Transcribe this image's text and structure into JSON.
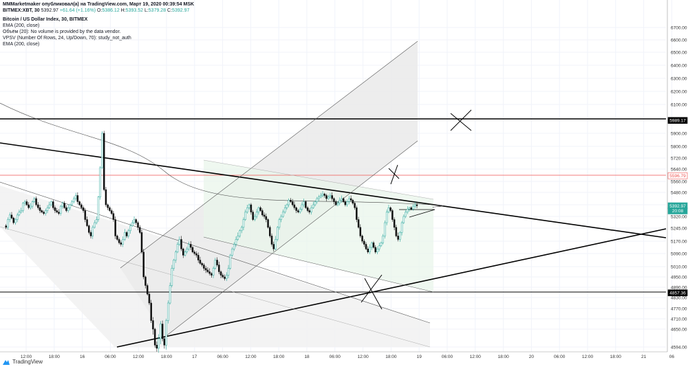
{
  "header": {
    "publisher": "MMMarketmaker опубликовал(а) на TradingView.com, Март 19, 2020 00:39:54 MSK",
    "symbol": "BITMEX:XBT, 30",
    "last": "5392.97",
    "change": "+61.64 (+1.16%)",
    "o_label": "O:",
    "o": "5386.12",
    "h_label": "H:",
    "h": "5393.52",
    "l_label": "L:",
    "l": "5379.28",
    "c_label": "C:",
    "c": "5392.97",
    "title": "Bitcoin / US Dollar Index, 30, BITMEX",
    "studies": [
      "EMA (200, close)",
      "Объём (20): No volume is provided by the data vendor.",
      "VPSV (Number Of Rows, 24, Up/Down, 70): study_not_auth",
      "EMA (200, close)"
    ]
  },
  "footer": {
    "brand": "TradingView"
  },
  "colors": {
    "up": "#26a69a",
    "down": "#111111",
    "accent_red": "#ef5350",
    "grid": "#f0f3fa"
  },
  "chart_data": {
    "type": "candlestick",
    "y_axis": {
      "ticks": [
        "6700.00",
        "6600.00",
        "6500.00",
        "6400.00",
        "6300.00",
        "6200.00",
        "6100.00",
        "6000.00",
        "5900.00",
        "5800.00",
        "5720.00",
        "5640.00",
        "5560.00",
        "5480.00",
        "5400.00",
        "5320.00",
        "5245.00",
        "5170.00",
        "5090.00",
        "5010.00",
        "4950.00",
        "4890.00",
        "4830.00",
        "4770.00",
        "4710.00",
        "4650.00",
        "4594.00"
      ],
      "tick_values": [
        6700,
        6600,
        6500,
        6400,
        6300,
        6200,
        6100,
        6000,
        5900,
        5800,
        5720,
        5640,
        5560,
        5480,
        5400,
        5320,
        5245,
        5170,
        5090,
        5010,
        4950,
        4890,
        4830,
        4770,
        4710,
        4650,
        4594
      ]
    },
    "x_axis": {
      "ticks": [
        "12:00",
        "18:00",
        "16",
        "06:00",
        "12:00",
        "18:00",
        "17",
        "06:00",
        "12:00",
        "18:00",
        "18",
        "06:00",
        "12:00",
        "18:00",
        "19",
        "06:00",
        "12:00",
        "18:00",
        "20",
        "06:00",
        "12:00",
        "18:00",
        "21",
        "06"
      ]
    },
    "price_tags": [
      {
        "label": "5989.17",
        "value": 5989.17,
        "style": "black"
      },
      {
        "label": "5596.79",
        "value": 5596.79,
        "style": "red"
      },
      {
        "label": "5392.97",
        "value": 5392.97,
        "style": "green"
      },
      {
        "label": "20:08",
        "value": 5358,
        "style": "green"
      },
      {
        "label": "4857.36",
        "value": 4857.36,
        "style": "black"
      }
    ],
    "close_series": [
      5260,
      5250,
      5300,
      5330,
      5310,
      5280,
      5300,
      5330,
      5350,
      5360,
      5410,
      5420,
      5400,
      5380,
      5390,
      5420,
      5440,
      5400,
      5380,
      5360,
      5350,
      5340,
      5360,
      5380,
      5400,
      5420,
      5380,
      5360,
      5350,
      5340,
      5390,
      5410,
      5380,
      5360,
      5380,
      5400,
      5420,
      5440,
      5460,
      5420,
      5400,
      5380,
      5360,
      5300,
      5260,
      5220,
      5200,
      5250,
      5280,
      5300,
      5450,
      5650,
      5900,
      5500,
      5400,
      5380,
      5360,
      5340,
      5300,
      5200,
      5180,
      5160,
      5150,
      5180,
      5220,
      5200,
      5230,
      5260,
      5280,
      5300,
      5280,
      5250,
      5220,
      5100,
      4950,
      4900,
      4850,
      4800,
      4700,
      4650,
      4600,
      4590,
      4620,
      4680,
      4620,
      4600,
      4700,
      4800,
      4900,
      5000,
      5050,
      5100,
      5150,
      5180,
      5120,
      5080,
      5100,
      5120,
      5150,
      5130,
      5100,
      5090,
      5080,
      5050,
      5030,
      5020,
      5000,
      4990,
      4980,
      4970,
      4960,
      5000,
      5050,
      5020,
      4980,
      4960,
      4950,
      4940,
      4960,
      5000,
      5080,
      5120,
      5150,
      5180,
      5200,
      5230,
      5250,
      5300,
      5350,
      5380,
      5400,
      5350,
      5300,
      5320,
      5350,
      5380,
      5360,
      5330,
      5320,
      5300,
      5250,
      5200,
      5150,
      5120,
      5180,
      5250,
      5300,
      5320,
      5350,
      5380,
      5400,
      5430,
      5420,
      5400,
      5380,
      5360,
      5350,
      5370,
      5400,
      5420,
      5380,
      5360,
      5350,
      5380,
      5400,
      5420,
      5440,
      5450,
      5460,
      5470,
      5460,
      5440,
      5450,
      5460,
      5440,
      5420,
      5400,
      5410,
      5430,
      5440,
      5420,
      5400,
      5420,
      5440,
      5430,
      5410,
      5380,
      5300,
      5250,
      5200,
      5170,
      5150,
      5120,
      5100,
      5130,
      5160,
      5130,
      5100,
      5120,
      5140,
      5160,
      5200,
      5280,
      5350,
      5380,
      5360,
      5300,
      5250,
      5200,
      5180,
      5220,
      5280,
      5320,
      5350,
      5370,
      5380,
      5370,
      5390,
      5400,
      5392.97
    ]
  }
}
